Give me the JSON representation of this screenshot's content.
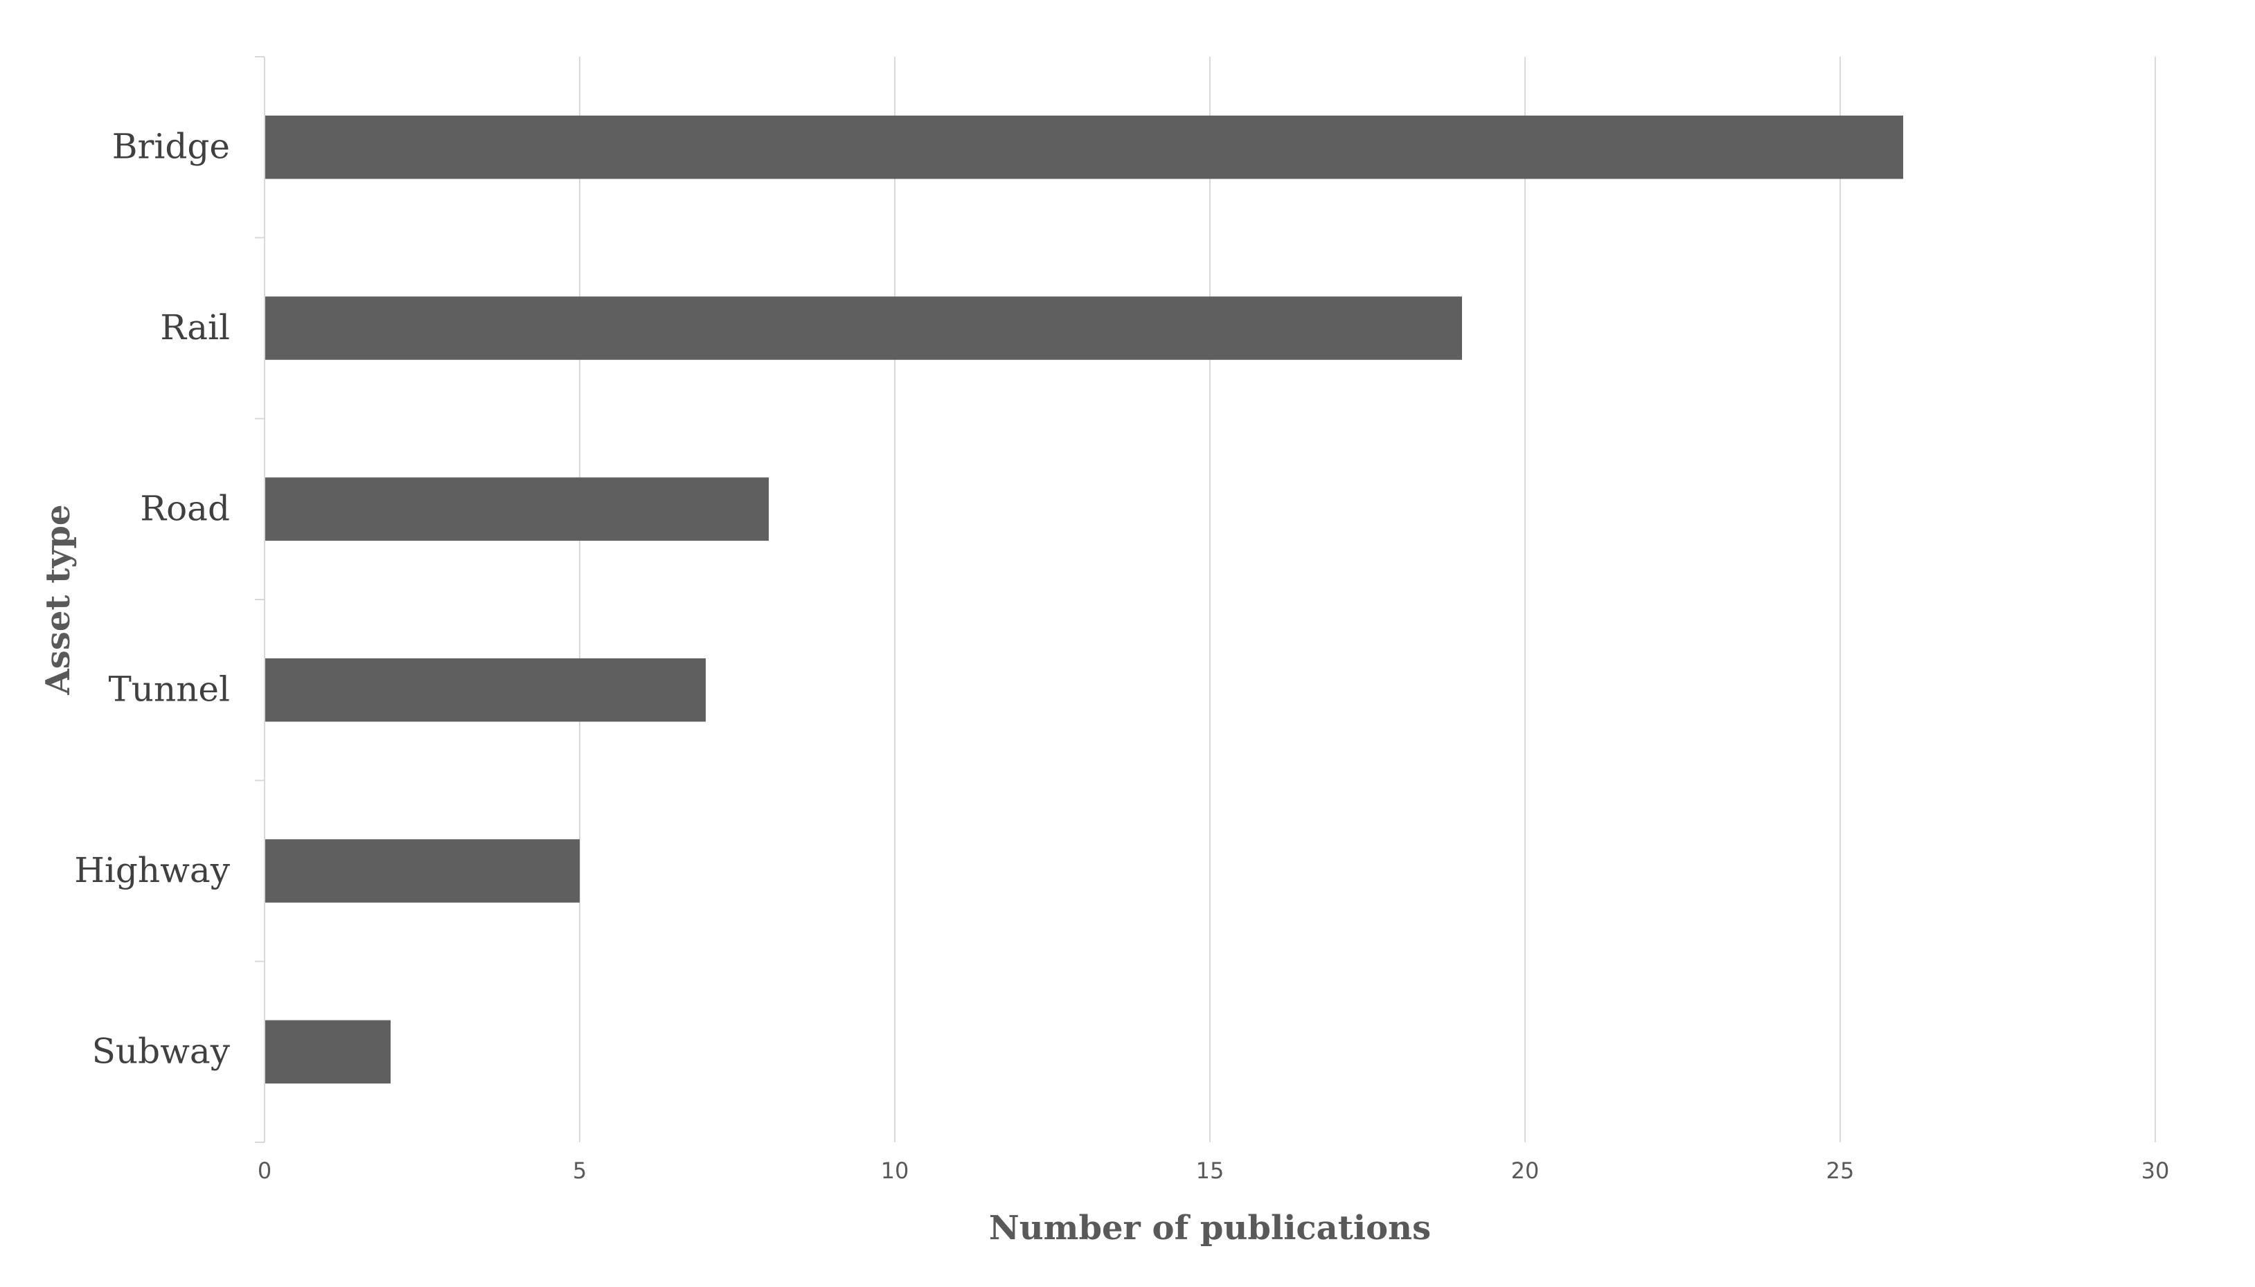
{
  "chart_data": {
    "type": "bar",
    "orientation": "horizontal",
    "title": "",
    "xlabel": "Number of publications",
    "ylabel": "Asset type",
    "categories": [
      "Bridge",
      "Rail",
      "Road",
      "Tunnel",
      "Highway",
      "Subway"
    ],
    "values": [
      26,
      19,
      8,
      7,
      5,
      2
    ],
    "xlim": [
      0,
      30
    ],
    "xticks": [
      0,
      5,
      10,
      15,
      20,
      25,
      30
    ],
    "grid": "vertical",
    "legend": "none",
    "bar_color": "#5f5f5f",
    "grid_color": "#d9d9d9"
  }
}
